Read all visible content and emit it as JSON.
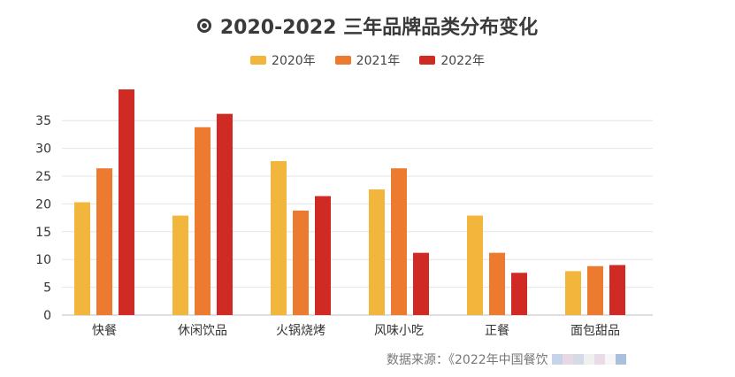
{
  "chart_data": {
    "type": "bar",
    "title": "2020-2022 三年品牌品类分布变化",
    "xlabel": "",
    "ylabel": "",
    "categories": [
      "快餐",
      "休闲饮品",
      "火锅烧烤",
      "风味小吃",
      "正餐",
      "面包甜品"
    ],
    "series": [
      {
        "name": "2020年",
        "color": "#f2b63d",
        "values": [
          20.3,
          17.9,
          27.7,
          22.6,
          17.9,
          7.9
        ]
      },
      {
        "name": "2021年",
        "color": "#ec7a2f",
        "values": [
          26.4,
          33.8,
          18.8,
          26.4,
          11.2,
          8.8
        ]
      },
      {
        "name": "2022年",
        "color": "#cf2b24",
        "values": [
          40.6,
          36.2,
          21.4,
          11.2,
          7.6,
          9.0
        ]
      }
    ],
    "ylim": [
      0,
      42
    ],
    "yticks": [
      0,
      5,
      10,
      15,
      20,
      25,
      30,
      35
    ],
    "grid": true,
    "legend": "top-center"
  },
  "title_icon": "target-icon",
  "source_text": "数据来源：《2022年中国餐饮"
}
